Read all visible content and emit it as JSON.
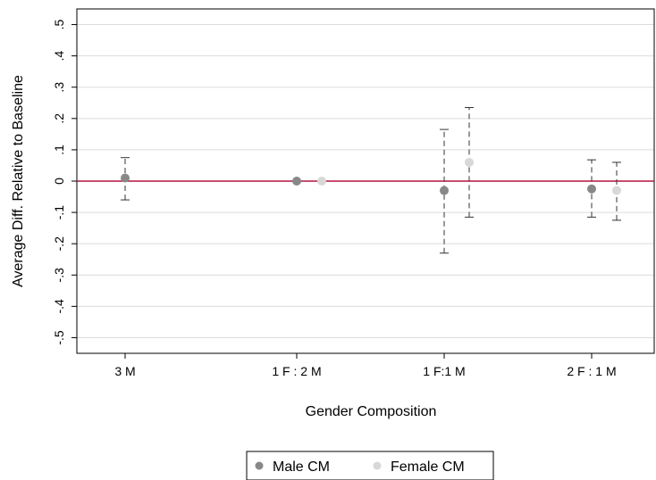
{
  "chart_data": {
    "type": "scatter",
    "xlabel": "Gender Composition",
    "ylabel": "Average Diff. Relative to Baseline",
    "ylim": [
      -0.55,
      0.55
    ],
    "yticks": [
      -0.5,
      -0.4,
      -0.3,
      -0.2,
      -0.1,
      0,
      0.1,
      0.2,
      0.3,
      0.4,
      0.5
    ],
    "ytick_labels": [
      "-.5",
      "-.4",
      "-.3",
      "-.2",
      "-.1",
      "0",
      ".1",
      ".2",
      ".3",
      ".4",
      ".5"
    ],
    "categories": [
      "3 M",
      "1 F : 2 M",
      "1 F:1 M",
      "2 F : 1 M"
    ],
    "grid": true,
    "reference_line": {
      "y": 0,
      "color": "#b5123e"
    },
    "legend": {
      "position": "bottom"
    },
    "series": [
      {
        "name": "Male CM",
        "color": "#888888",
        "points": [
          {
            "category": "3 M",
            "y": 0.01,
            "ci": [
              -0.06,
              0.075
            ]
          },
          {
            "category": "1 F : 2 M",
            "y": 0.0,
            "ci": null
          },
          {
            "category": "1 F:1 M",
            "y": -0.03,
            "ci": [
              -0.23,
              0.165
            ]
          },
          {
            "category": "2 F : 1 M",
            "y": -0.025,
            "ci": [
              -0.115,
              0.068
            ]
          }
        ]
      },
      {
        "name": "Female CM",
        "color": "#d8d8d8",
        "points": [
          {
            "category": "1 F : 2 M",
            "y": 0.0,
            "ci": null
          },
          {
            "category": "1 F:1 M",
            "y": 0.06,
            "ci": [
              -0.115,
              0.235
            ]
          },
          {
            "category": "2 F : 1 M",
            "y": -0.03,
            "ci": [
              -0.125,
              0.06
            ]
          }
        ]
      }
    ]
  }
}
